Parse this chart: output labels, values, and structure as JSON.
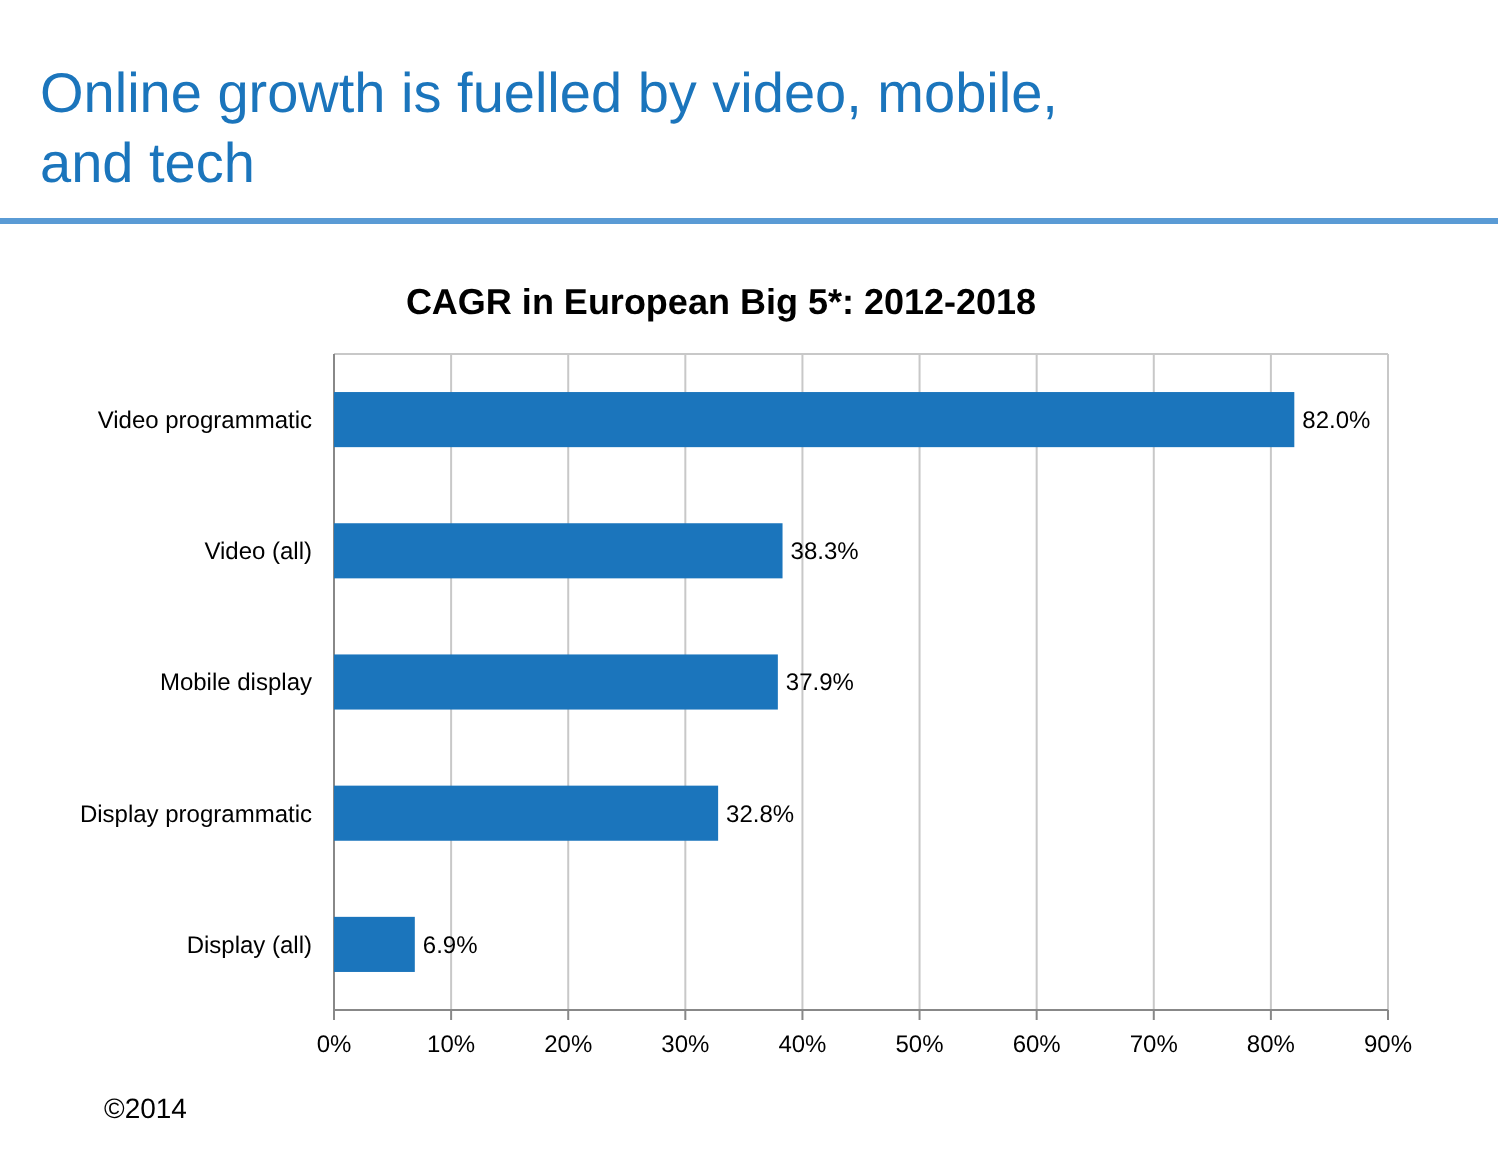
{
  "chart_data": {
    "type": "bar",
    "orientation": "horizontal",
    "title": "Online growth is fuelled by video, mobile, and tech",
    "subtitle": "CAGR in European Big 5*: 2012-2018",
    "categories": [
      "Video programmatic",
      "Video (all)",
      "Mobile display",
      "Display programmatic",
      "Display (all)"
    ],
    "values": [
      82.0,
      38.3,
      37.9,
      32.8,
      6.9
    ],
    "value_labels": [
      "82.0%",
      "38.3%",
      "37.9%",
      "32.8%",
      "6.9%"
    ],
    "color": "#1b75bc",
    "xlim": [
      0,
      90
    ],
    "xticks": [
      {
        "value": 0,
        "label": "0%"
      },
      {
        "value": 10,
        "label": "10%"
      },
      {
        "value": 20,
        "label": "20%"
      },
      {
        "value": 30,
        "label": "30%"
      },
      {
        "value": 40,
        "label": "40%"
      },
      {
        "value": 50,
        "label": "50%"
      },
      {
        "value": 60,
        "label": "60%"
      },
      {
        "value": 70,
        "label": "70%"
      },
      {
        "value": 80,
        "label": "80%"
      },
      {
        "value": 90,
        "label": "90%"
      }
    ],
    "grid": "x",
    "annotations": [
      "©2014"
    ]
  }
}
